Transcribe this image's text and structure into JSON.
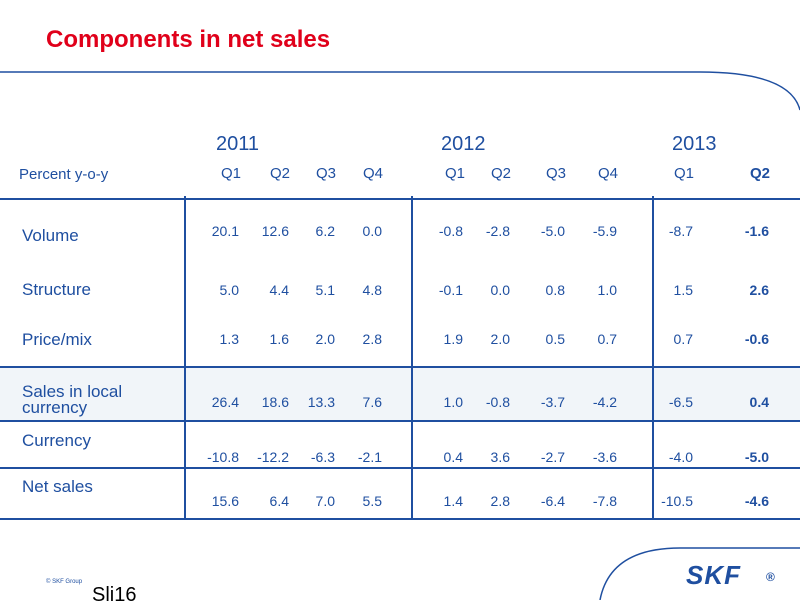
{
  "title": "Components in net sales",
  "table": {
    "row_header": "Percent y-o-y",
    "years": [
      "2011",
      "2012",
      "2013"
    ],
    "quarters": [
      "Q1",
      "Q2",
      "Q3",
      "Q4",
      "Q1",
      "Q2",
      "Q3",
      "Q4",
      "Q1",
      "Q2"
    ],
    "rows": [
      {
        "label": "Volume",
        "values": [
          "20.1",
          "12.6",
          "6.2",
          "0.0",
          "-0.8",
          "-2.8",
          "-5.0",
          "-5.9",
          "-8.7",
          "-1.6"
        ]
      },
      {
        "label": "Structure",
        "values": [
          "5.0",
          "4.4",
          "5.1",
          "4.8",
          "-0.1",
          "0.0",
          "0.8",
          "1.0",
          "1.5",
          "2.6"
        ]
      },
      {
        "label": "Price/mix",
        "values": [
          "1.3",
          "1.6",
          "2.0",
          "2.8",
          "1.9",
          "2.0",
          "0.5",
          "0.7",
          "0.7",
          "-0.6"
        ]
      },
      {
        "label": "Sales in local currency",
        "values": [
          "26.4",
          "18.6",
          "13.3",
          "7.6",
          "1.0",
          "-0.8",
          "-3.7",
          "-4.2",
          "-6.5",
          "0.4"
        ]
      },
      {
        "label": "Currency",
        "values": [
          "-10.8",
          "-12.2",
          "-6.3",
          "-2.1",
          "0.4",
          "3.6",
          "-2.7",
          "-3.6",
          "-4.0",
          "-5.0"
        ]
      },
      {
        "label": "Net sales",
        "values": [
          "15.6",
          "6.4",
          "7.0",
          "5.5",
          "1.4",
          "2.8",
          "-6.4",
          "-7.8",
          "-10.5",
          "-4.6"
        ]
      }
    ]
  },
  "footer": {
    "copyright": "© SKF Group",
    "slide_label": "Sli16",
    "logo_text": "SKF",
    "logo_mark": "®"
  },
  "colors": {
    "title": "#e0001a",
    "text": "#1f4fa0"
  }
}
